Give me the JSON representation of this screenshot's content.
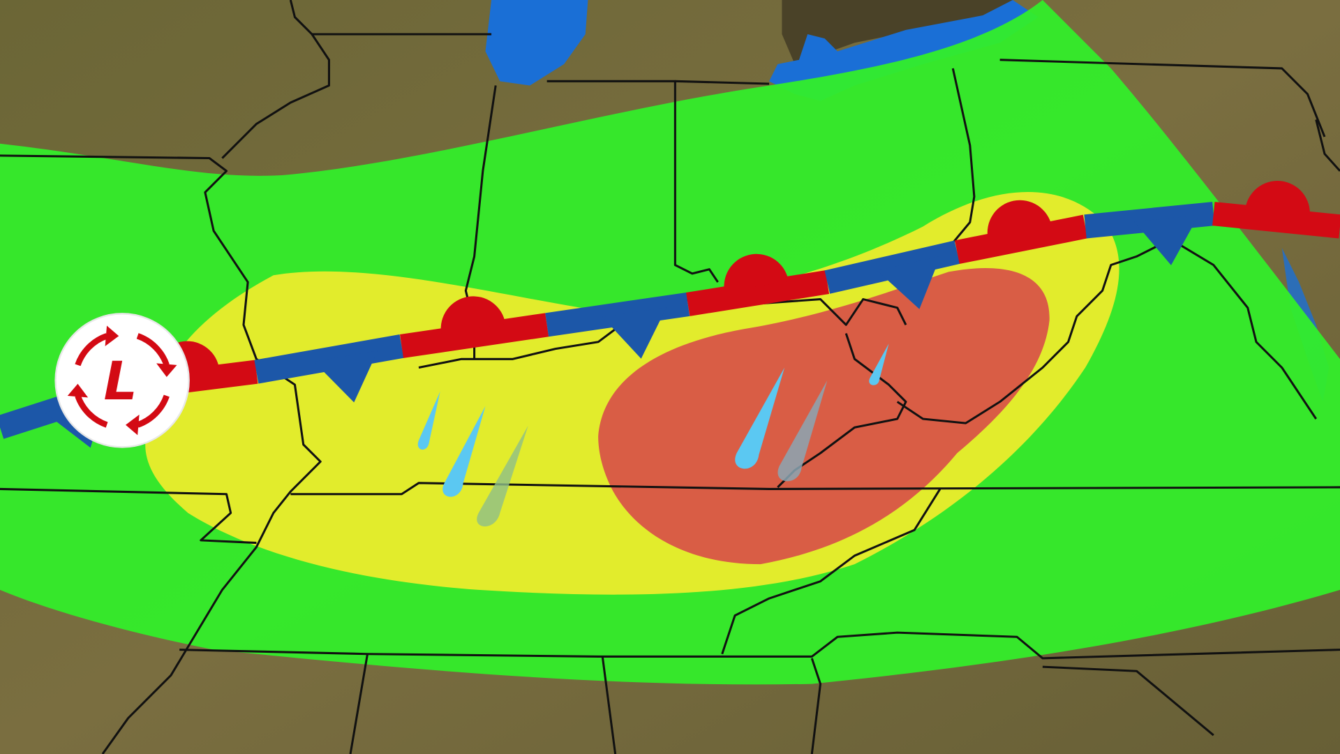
{
  "map": {
    "colors": {
      "land": "#6f6a3c",
      "water": "#1a6fd6",
      "ontario": "#4a4228",
      "risk_low": "#33ee2a",
      "risk_mid": "#ecec2c",
      "risk_high": "#d85048",
      "warm_front": "#d30a14",
      "cold_front": "#1c57a8",
      "border": "#111111",
      "rain": "#5bc8f2"
    },
    "layers": [
      "land",
      "lakes",
      "risk-low",
      "risk-mid",
      "risk-high",
      "state-borders",
      "stationary-front",
      "rain-drops",
      "low-pressure"
    ],
    "front_type": "stationary",
    "rain_drop_count": 6,
    "low_pressure": {
      "letter": "L",
      "icon": "low-pressure-circulation-icon"
    }
  }
}
